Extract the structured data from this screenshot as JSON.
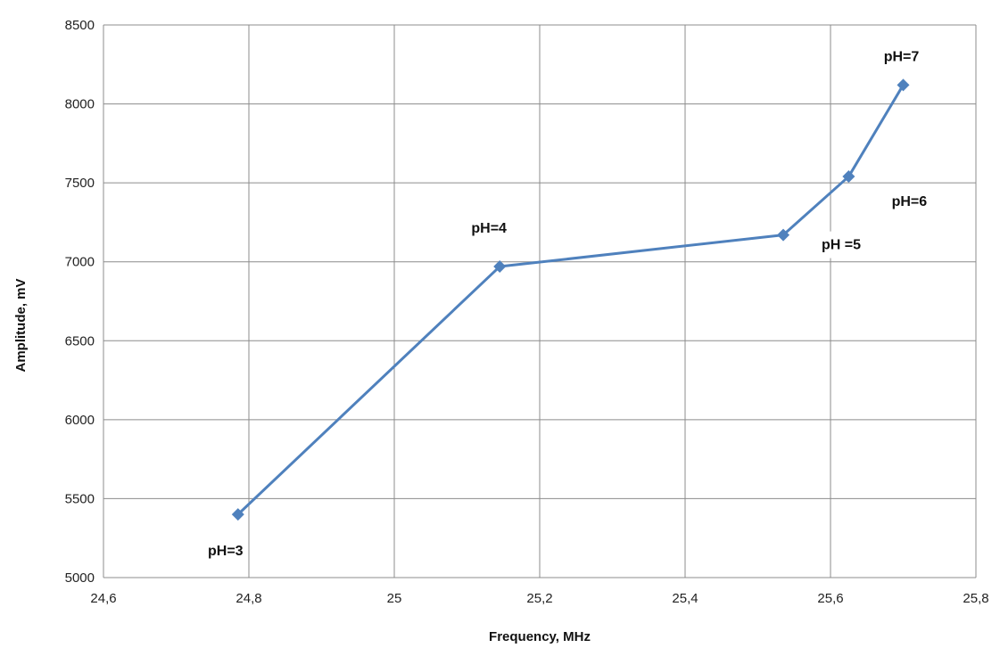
{
  "chart_data": {
    "type": "line",
    "title": "",
    "xlabel": "Frequency, MHz",
    "ylabel": "Amplitude, mV",
    "xlim": [
      24.6,
      25.8
    ],
    "ylim": [
      5000,
      8500
    ],
    "x_ticks": [
      24.6,
      24.8,
      25,
      25.2,
      25.4,
      25.6,
      25.8
    ],
    "x_tick_labels": [
      "24,6",
      "24,8",
      "25",
      "25,2",
      "25,4",
      "25,6",
      "25,8"
    ],
    "y_ticks": [
      5000,
      5500,
      6000,
      6500,
      7000,
      7500,
      8000,
      8500
    ],
    "y_tick_labels": [
      "5000",
      "5500",
      "6000",
      "6500",
      "7000",
      "7500",
      "8000",
      "8500"
    ],
    "grid": true,
    "legend": "none",
    "series": [
      {
        "color": "#4F81BD",
        "marker": "diamond",
        "x": [
          24.785,
          25.145,
          25.535,
          25.625,
          25.7
        ],
        "y": [
          5400,
          6970,
          7170,
          7540,
          8120
        ],
        "labels": [
          "pH=3",
          "pH=4",
          "pH =5",
          "pH=6",
          "pH=7"
        ]
      }
    ]
  }
}
